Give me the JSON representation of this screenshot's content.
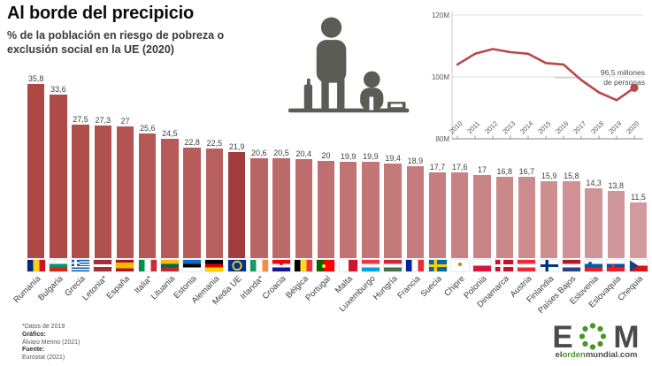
{
  "header": {
    "title": "Al borde del precipicio",
    "subtitle": "% de la población en riesgo de pobreza o exclusión social en la UE (2020)"
  },
  "chart_data": [
    {
      "type": "bar",
      "title": "% de la población en riesgo de pobreza o exclusión social en la UE (2020)",
      "categories": [
        "Rumanía",
        "Bulgaria",
        "Grecia",
        "Letonia*",
        "España",
        "Italia*",
        "Lituania",
        "Estonia",
        "Alemania",
        "Media UE",
        "Irlanda*",
        "Croacia",
        "Bélgica",
        "Portugal",
        "Malta",
        "Luxemburgo",
        "Hungría",
        "Francia",
        "Suecia",
        "Chipre",
        "Polonia",
        "Dinamarca",
        "Austria",
        "Finlandia",
        "Países Bajos",
        "Eslovenia",
        "Eslovaquia",
        "Chequia"
      ],
      "values": [
        35.8,
        33.6,
        27.5,
        27.3,
        27,
        25.6,
        24.5,
        22.8,
        22.5,
        21.9,
        20.6,
        20.5,
        20.4,
        20,
        19.9,
        19.9,
        19.4,
        18.9,
        17.7,
        17.6,
        17,
        16.8,
        16.7,
        15.9,
        15.8,
        14.3,
        13.8,
        11.5
      ],
      "highlight_index": 9,
      "colors": {
        "start": "#ad4845",
        "end": "#d39a9d",
        "highlight": "#a23c3d"
      },
      "ylim": [
        0,
        36
      ],
      "grid": false,
      "value_labels": true,
      "decimal_separator": ","
    },
    {
      "type": "line",
      "x": [
        2010,
        2011,
        2012,
        2013,
        2014,
        2015,
        2016,
        2017,
        2018,
        2019,
        2020
      ],
      "values": [
        104,
        107.5,
        109,
        108,
        107.5,
        104.5,
        104,
        99,
        95,
        92.5,
        96.5
      ],
      "ylim": [
        80,
        120
      ],
      "ytick_labels": [
        "120M",
        "100M",
        "80M"
      ],
      "annotation": "96,5 millones de personas",
      "annotation_lines": [
        "96,5 millones",
        "de personas"
      ],
      "line_color": "#b8494a",
      "grid": true,
      "legend": "none"
    }
  ],
  "flags": [
    {
      "slug": "rumania",
      "d": "v",
      "c": [
        "#002B7F",
        "#FCD116",
        "#CE1126"
      ]
    },
    {
      "slug": "bulgaria",
      "d": "h",
      "c": [
        "#FFFFFF",
        "#00966E",
        "#D62612"
      ]
    },
    {
      "slug": "grecia",
      "d": "h",
      "c": [
        "#0D5EAF",
        "#FFFFFF",
        "#0D5EAF",
        "#FFFFFF",
        "#0D5EAF",
        "#FFFFFF",
        "#0D5EAF",
        "#FFFFFF",
        "#0D5EAF"
      ],
      "canton": {
        "bg": "#0D5EAF",
        "cross": "#FFFFFF"
      }
    },
    {
      "slug": "letonia",
      "d": "h",
      "c": [
        "#9E3039",
        "#FFFFFF",
        "#9E3039"
      ],
      "w": [
        2,
        1,
        2
      ]
    },
    {
      "slug": "espana",
      "d": "h",
      "c": [
        "#AA151B",
        "#F1BF00",
        "#AA151B"
      ],
      "w": [
        1,
        2,
        1
      ]
    },
    {
      "slug": "italia",
      "d": "v",
      "c": [
        "#009246",
        "#FFFFFF",
        "#CE2B37"
      ]
    },
    {
      "slug": "lituania",
      "d": "h",
      "c": [
        "#FDB913",
        "#006A44",
        "#C1272D"
      ]
    },
    {
      "slug": "estonia",
      "d": "h",
      "c": [
        "#0072CE",
        "#000000",
        "#FFFFFF"
      ]
    },
    {
      "slug": "alemania",
      "d": "h",
      "c": [
        "#000000",
        "#DD0000",
        "#FFCE00"
      ]
    },
    {
      "slug": "media-ue",
      "bg": "#003399",
      "ring": "#FFCC00"
    },
    {
      "slug": "irlanda",
      "d": "v",
      "c": [
        "#169B62",
        "#FFFFFF",
        "#FF883E"
      ]
    },
    {
      "slug": "croacia",
      "d": "h",
      "c": [
        "#FF0000",
        "#FFFFFF",
        "#171796"
      ],
      "dot": {
        "c": "#C8102E",
        "l": 50,
        "t": 30
      }
    },
    {
      "slug": "belgica",
      "d": "v",
      "c": [
        "#000000",
        "#FDDA24",
        "#EF3340"
      ]
    },
    {
      "slug": "portugal",
      "d": "v",
      "c": [
        "#006600",
        "#FF0000"
      ],
      "w": [
        2,
        3
      ],
      "dot": {
        "c": "#FFE900",
        "l": 40,
        "t": 50
      }
    },
    {
      "slug": "malta",
      "d": "v",
      "c": [
        "#FFFFFF",
        "#CF142B"
      ]
    },
    {
      "slug": "luxemburgo",
      "d": "h",
      "c": [
        "#EF3340",
        "#FFFFFF",
        "#00A2E1"
      ]
    },
    {
      "slug": "hungria",
      "d": "h",
      "c": [
        "#CE2939",
        "#FFFFFF",
        "#477050"
      ]
    },
    {
      "slug": "francia",
      "d": "v",
      "c": [
        "#002395",
        "#FFFFFF",
        "#ED2939"
      ]
    },
    {
      "slug": "suecia",
      "bg": "#006AA7",
      "cross": "#FECC00"
    },
    {
      "slug": "chipre",
      "bg": "#FFFFFF",
      "dot": {
        "c": "#D57800",
        "l": 50,
        "t": 42
      }
    },
    {
      "slug": "polonia",
      "d": "h",
      "c": [
        "#FFFFFF",
        "#DC143C"
      ]
    },
    {
      "slug": "dinamarca",
      "bg": "#C8102E",
      "cross": "#FFFFFF"
    },
    {
      "slug": "austria",
      "d": "h",
      "c": [
        "#ED2939",
        "#FFFFFF",
        "#ED2939"
      ]
    },
    {
      "slug": "finlandia",
      "bg": "#FFFFFF",
      "cross": "#003580"
    },
    {
      "slug": "paises-bajos",
      "d": "h",
      "c": [
        "#AE1C28",
        "#FFFFFF",
        "#21468B"
      ]
    },
    {
      "slug": "eslovenia",
      "d": "h",
      "c": [
        "#FFFFFF",
        "#005DA4",
        "#ED1C24"
      ],
      "dot": {
        "c": "#005DA4",
        "l": 28,
        "t": 33
      }
    },
    {
      "slug": "eslovaquia",
      "d": "h",
      "c": [
        "#FFFFFF",
        "#0B4EA2",
        "#EE1C25"
      ],
      "dot": {
        "c": "#EE1C25",
        "l": 35,
        "t": 55
      }
    },
    {
      "slug": "chequia",
      "d": "h",
      "c": [
        "#FFFFFF",
        "#D7141A"
      ],
      "tri": "#11457E"
    }
  ],
  "footer": {
    "note": "*Datos de 2019",
    "credit_label": "Gráfico:",
    "credit": "Álvaro Merino (2021)",
    "source_label": "Fuente:",
    "source": "Eurostat (2021)",
    "logo": {
      "letter_e": "E",
      "letter_m": "M",
      "domain_parts": [
        "el",
        "orden",
        "mundial.com"
      ],
      "green": "#4a9625",
      "gray": "#4b4b4b"
    }
  },
  "icons": {
    "pictogram": "adult-and-child-poverty-pictogram",
    "pictogram_color": "#5c5c57"
  }
}
